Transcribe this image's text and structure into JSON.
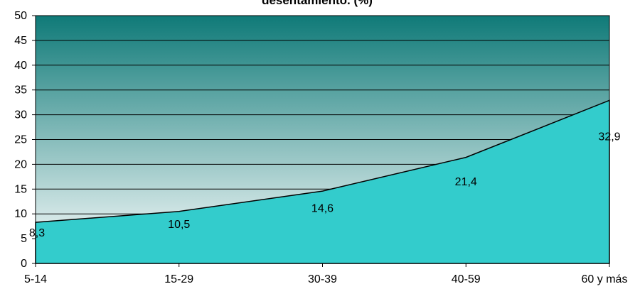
{
  "chart_data": {
    "type": "area",
    "title": "desentamiento. (%)",
    "xlabel": "",
    "ylabel": "",
    "categories": [
      "5-14",
      "15-29",
      "30-39",
      "40-59",
      "60 y más"
    ],
    "series": [
      {
        "values": [
          8.3,
          10.5,
          14.6,
          21.4,
          32.9
        ]
      }
    ],
    "data_labels": [
      "8,3",
      "10,5",
      "14,6",
      "21,4",
      "32,9"
    ],
    "ylim": [
      0,
      50
    ],
    "yticks": [
      0,
      5,
      10,
      15,
      20,
      25,
      30,
      35,
      40,
      45,
      50
    ],
    "grid": true,
    "legend": "none",
    "colors": {
      "area_fill": "#33CCCC",
      "area_line": "#000000",
      "plot_bg_top": "#0F7A78",
      "plot_bg_bottom": "#FFFFFF",
      "gridline": "#000000"
    }
  }
}
